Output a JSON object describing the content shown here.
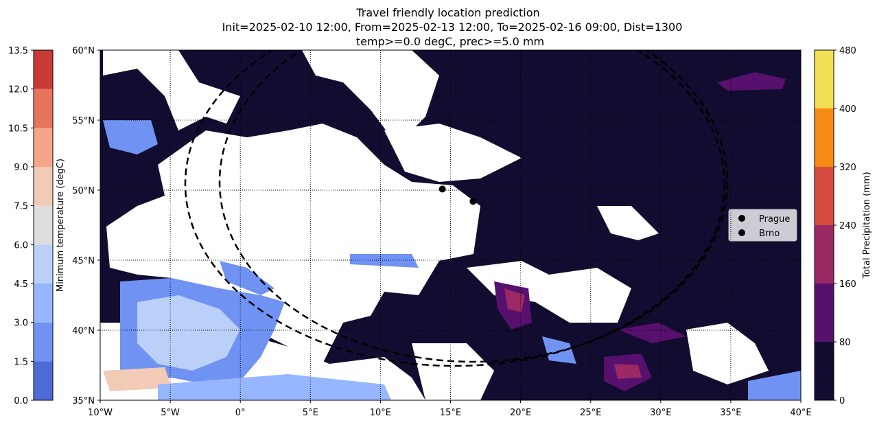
{
  "title": [
    "Travel friendly location prediction",
    "Init=2025-02-10 12:00, From=2025-02-13 12:00, To=2025-02-16 09:00, Dist=1300",
    "temp>=0.0 degC, prec>=5.0 mm"
  ],
  "map": {
    "lonlim": [
      -10,
      40
    ],
    "latlim": [
      35,
      60
    ],
    "lon_ticks": [
      {
        "value": -10,
        "label": "10°W"
      },
      {
        "value": -5,
        "label": "5°W"
      },
      {
        "value": 0,
        "label": "0°"
      },
      {
        "value": 5,
        "label": "5°E"
      },
      {
        "value": 10,
        "label": "10°E"
      },
      {
        "value": 15,
        "label": "15°E"
      },
      {
        "value": 20,
        "label": "20°E"
      },
      {
        "value": 25,
        "label": "25°E"
      },
      {
        "value": 30,
        "label": "30°E"
      },
      {
        "value": 35,
        "label": "35°E"
      },
      {
        "value": 40,
        "label": "40°E"
      }
    ],
    "lat_ticks": [
      {
        "value": 35,
        "label": "35°N"
      },
      {
        "value": 40,
        "label": "40°N"
      },
      {
        "value": 45,
        "label": "45°N"
      },
      {
        "value": 50,
        "label": "50°N"
      },
      {
        "value": 55,
        "label": "55°N"
      },
      {
        "value": 60,
        "label": "60°N"
      }
    ],
    "cities": [
      {
        "name": "Prague",
        "lon": 14.42,
        "lat": 50.08
      },
      {
        "name": "Brno",
        "lon": 16.61,
        "lat": 49.2
      }
    ]
  },
  "colorbars": [
    {
      "label": "Minimum temperature (degC)",
      "lim": [
        0,
        13.5
      ],
      "ticks": [
        {
          "value": 0,
          "label": "0.0"
        },
        1.5,
        {
          "value": 3,
          "label": "3.0"
        },
        4.5,
        {
          "value": 6,
          "label": "6.0"
        },
        7.5,
        {
          "value": 9,
          "label": "9.0"
        },
        10.5,
        {
          "value": 12,
          "label": "12.0"
        },
        13.5
      ],
      "colors": [
        "#4e6ad6",
        "#6f92f3",
        "#96b7ff",
        "#bbd0f8",
        "#dddddd",
        "#f2cbb7",
        "#f5a688",
        "#e7745b",
        "#c83a36"
      ]
    },
    {
      "label": "Total Precipitation (mm)",
      "lim": [
        0,
        480
      ],
      "ticks": [
        0,
        80,
        160,
        240,
        320,
        400,
        480
      ],
      "colors": [
        "#120c30",
        "#57106e",
        "#9c2964",
        "#d74b3e",
        "#f68a13",
        "#f3df55"
      ]
    }
  ]
}
